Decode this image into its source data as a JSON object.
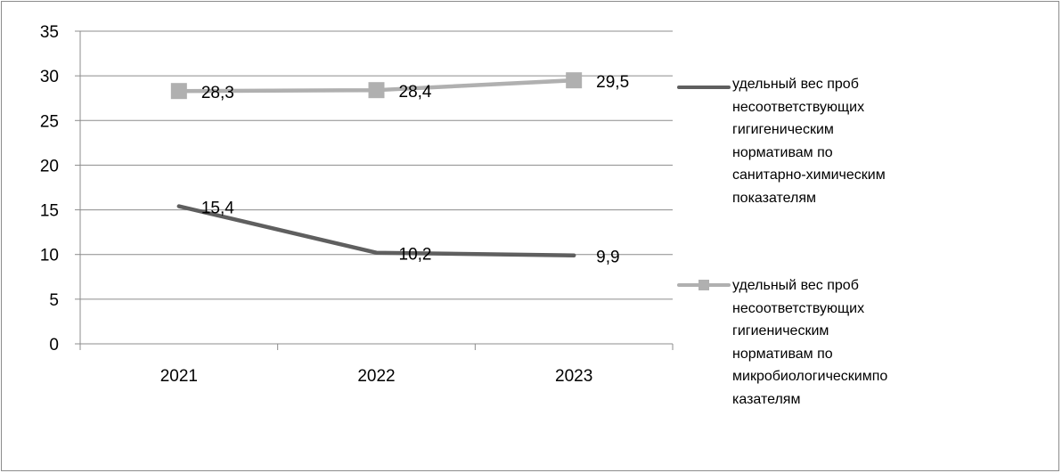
{
  "chart_data": {
    "type": "line",
    "categories": [
      "2021",
      "2022",
      "2023"
    ],
    "ylim": [
      0,
      35
    ],
    "yticks": [
      0,
      5,
      10,
      15,
      20,
      25,
      30,
      35
    ],
    "ytick_labels": [
      "0",
      "5",
      "10",
      "15",
      "20",
      "25",
      "30",
      "35"
    ],
    "grid": true,
    "legend_position": "right",
    "series": [
      {
        "name": "удельный вес проб несоответствующих гигигеническим нормативам по санитарно-химическим показателям",
        "values": [
          15.4,
          10.2,
          9.9
        ],
        "labels": [
          "15,4",
          "10,2",
          "9,9"
        ],
        "color": "#5f5f5f",
        "marker": "none"
      },
      {
        "name": "удельный вес проб несоответствующих гигиеническим нормативам по микробиологическимпо казателям",
        "values": [
          28.3,
          28.4,
          29.5
        ],
        "labels": [
          "28,3",
          "28,4",
          "29,5"
        ],
        "color": "#b0b0b0",
        "marker": "square"
      }
    ]
  },
  "legend": {
    "items": [
      {
        "label": "удельный вес проб\nнесоответствующих\nгигигеническим\nнормативам по\nсанитарно-химическим\nпоказателям"
      },
      {
        "label": "удельный вес проб\nнесоответствующих\nгигиеническим\nнормативам по\nмикробиологическимпо\nказателям"
      }
    ]
  }
}
